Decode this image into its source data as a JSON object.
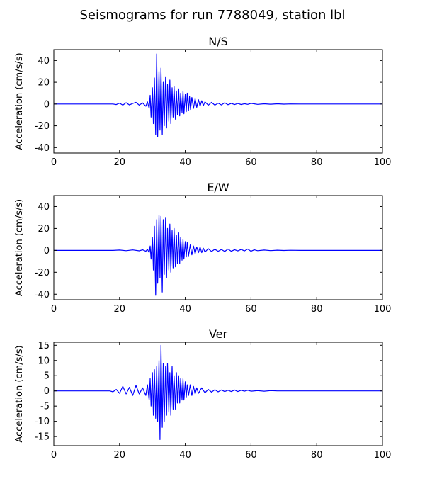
{
  "figure": {
    "title": "Seismograms for run 7788049, station lbl"
  },
  "chart_data": [
    {
      "type": "line",
      "title": "N/S",
      "xlabel": "",
      "ylabel": "Acceleration (cm/s/s)",
      "xlim": [
        0,
        100
      ],
      "ylim": [
        -45,
        50
      ],
      "xticks": [
        0,
        20,
        40,
        60,
        80,
        100
      ],
      "yticks": [
        -40,
        -20,
        0,
        20,
        40
      ],
      "grid": false,
      "series": [
        {
          "color": "#0000ff",
          "x": [
            0,
            18,
            19,
            20,
            21,
            22,
            23,
            24,
            25,
            26,
            27,
            28,
            28.5,
            29,
            29.3,
            29.6,
            30,
            30.3,
            30.6,
            31,
            31.3,
            31.6,
            32,
            32.3,
            32.6,
            33,
            33.3,
            33.6,
            34,
            34.3,
            34.6,
            35,
            35.3,
            35.6,
            36,
            36.3,
            36.6,
            37,
            37.3,
            37.6,
            38,
            38.3,
            38.6,
            39,
            39.3,
            39.6,
            40,
            40.3,
            40.6,
            41,
            41.3,
            41.6,
            42,
            42.5,
            43,
            43.5,
            44,
            44.5,
            45,
            45.5,
            46,
            47,
            48,
            49,
            50,
            51,
            52,
            53,
            54,
            55,
            56,
            57,
            58,
            59,
            60,
            62,
            64,
            66,
            68,
            70,
            72,
            75,
            80,
            100
          ],
          "y": [
            0,
            0,
            -0.5,
            0.8,
            -1,
            1.2,
            -0.8,
            0.5,
            1.5,
            -1,
            1,
            -2,
            2,
            -4,
            8,
            -12,
            15,
            -18,
            24,
            -28,
            46,
            -30,
            30,
            -24,
            33,
            -28,
            20,
            -20,
            25,
            -22,
            18,
            -16,
            22,
            -18,
            15,
            -12,
            16,
            -14,
            12,
            -10,
            14,
            -11,
            10,
            -8,
            12,
            -9,
            9,
            -7,
            10,
            -6,
            7,
            -5,
            6,
            -4,
            5,
            -3,
            4,
            -2,
            3,
            -1.5,
            2,
            -1,
            1.5,
            -1,
            0.8,
            -0.8,
            1.2,
            -0.6,
            0.6,
            -0.5,
            0.5,
            -0.4,
            0.3,
            -0.3,
            0.6,
            -0.3,
            0.2,
            -0.2,
            0.2,
            -0.1,
            0.1,
            0,
            0,
            0
          ]
        }
      ]
    },
    {
      "type": "line",
      "title": "E/W",
      "xlabel": "",
      "ylabel": "Acceleration (cm/s/s)",
      "xlim": [
        0,
        100
      ],
      "ylim": [
        -45,
        50
      ],
      "xticks": [
        0,
        20,
        40,
        60,
        80,
        100
      ],
      "yticks": [
        -40,
        -20,
        0,
        20,
        40
      ],
      "grid": false,
      "series": [
        {
          "color": "#0000ff",
          "x": [
            0,
            18,
            20,
            22,
            24,
            26,
            27,
            28,
            28.5,
            29,
            29.3,
            29.6,
            30,
            30.3,
            30.6,
            31,
            31.3,
            31.6,
            32,
            32.3,
            32.6,
            33,
            33.3,
            33.6,
            34,
            34.3,
            34.6,
            35,
            35.3,
            35.6,
            36,
            36.3,
            36.6,
            37,
            37.3,
            37.6,
            38,
            38.3,
            38.6,
            39,
            39.3,
            39.6,
            40,
            40.3,
            40.6,
            41,
            41.5,
            42,
            42.5,
            43,
            43.5,
            44,
            44.5,
            45,
            45.5,
            46,
            47,
            48,
            49,
            50,
            51,
            52,
            53,
            54,
            55,
            56,
            57,
            58,
            59,
            60,
            61,
            62,
            64,
            66,
            68,
            70,
            72,
            75,
            80,
            100
          ],
          "y": [
            0,
            0,
            0.3,
            -0.3,
            0.4,
            -0.4,
            0.5,
            -0.8,
            1,
            -2,
            4,
            -8,
            12,
            -18,
            22,
            -41,
            28,
            -30,
            32,
            -25,
            31,
            -38,
            28,
            -22,
            30,
            -25,
            20,
            -18,
            24,
            -20,
            18,
            -16,
            20,
            -15,
            14,
            -12,
            16,
            -12,
            12,
            -9,
            10,
            -8,
            8,
            -6,
            7,
            -5,
            5,
            -4,
            4,
            -3,
            3,
            -2,
            3,
            -2,
            2,
            -1.5,
            1.5,
            -1,
            1,
            -0.8,
            0.8,
            -1,
            1.2,
            -0.8,
            0.6,
            -0.5,
            0.8,
            -0.5,
            1.2,
            -0.8,
            0.5,
            -0.3,
            0.3,
            -0.2,
            0.2,
            -0.1,
            0.1,
            0,
            0,
            0
          ]
        }
      ]
    },
    {
      "type": "line",
      "title": "Ver",
      "xlabel": "",
      "ylabel": "Acceleration (cm/s/s)",
      "xlim": [
        0,
        100
      ],
      "ylim": [
        -18,
        16
      ],
      "xticks": [
        0,
        20,
        40,
        60,
        80,
        100
      ],
      "yticks": [
        -15,
        -10,
        -5,
        0,
        5,
        10,
        15
      ],
      "grid": false,
      "series": [
        {
          "color": "#0000ff",
          "x": [
            0,
            17,
            18,
            19,
            20,
            21,
            22,
            23,
            24,
            25,
            26,
            27,
            28,
            28.5,
            29,
            29.3,
            29.6,
            30,
            30.3,
            30.6,
            31,
            31.3,
            31.6,
            32,
            32.3,
            32.6,
            33,
            33.3,
            33.6,
            34,
            34.3,
            34.6,
            35,
            35.3,
            35.6,
            36,
            36.3,
            36.6,
            37,
            37.3,
            37.6,
            38,
            38.3,
            38.6,
            39,
            39.3,
            39.6,
            40,
            40.3,
            40.6,
            41,
            41.5,
            42,
            42.5,
            43,
            43.5,
            44,
            45,
            46,
            47,
            48,
            49,
            50,
            51,
            52,
            53,
            54,
            55,
            56,
            57,
            58,
            59,
            60,
            62,
            64,
            66,
            68,
            70,
            72,
            75,
            80,
            100
          ],
          "y": [
            0,
            0,
            -0.3,
            0.5,
            -0.8,
            1.5,
            -1,
            1.2,
            -1.5,
            1.8,
            -1,
            1,
            -1.5,
            2,
            -3,
            4,
            -5,
            6,
            -8,
            7,
            -9,
            8,
            -10,
            10,
            -16,
            15,
            -12,
            9,
            -10,
            8,
            -8,
            9,
            -7,
            6,
            -8,
            8,
            -6,
            5,
            -6,
            6,
            -4,
            5,
            -4,
            4,
            -3,
            4,
            -3,
            3,
            -2,
            2,
            -1.5,
            2,
            -1.5,
            1.5,
            -1,
            1,
            -0.8,
            1,
            -0.6,
            0.5,
            -0.4,
            0.4,
            -0.3,
            0.3,
            -0.2,
            0.2,
            -0.2,
            0.3,
            -0.2,
            0.2,
            -0.1,
            0.2,
            -0.1,
            0.1,
            -0.1,
            0.1,
            0,
            0,
            0,
            0,
            0,
            0
          ]
        }
      ]
    }
  ]
}
